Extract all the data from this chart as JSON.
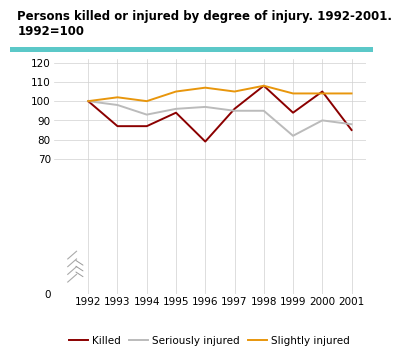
{
  "title_line1": "Persons killed or injured by degree of injury. 1992-2001.",
  "title_line2": "1992=100",
  "years": [
    1992,
    1993,
    1994,
    1995,
    1996,
    1997,
    1998,
    1999,
    2000,
    2001
  ],
  "killed": [
    100,
    87,
    87,
    94,
    79,
    96,
    108,
    94,
    105,
    85
  ],
  "seriously_injured": [
    100,
    98,
    93,
    96,
    97,
    95,
    95,
    82,
    90,
    88
  ],
  "slightly_injured": [
    100,
    102,
    100,
    105,
    107,
    105,
    108,
    104,
    104,
    104
  ],
  "killed_color": "#8B0000",
  "seriously_color": "#BBBBBB",
  "slightly_color": "#E8960C",
  "ylim": [
    0,
    122
  ],
  "yticks": [
    0,
    70,
    80,
    90,
    100,
    110,
    120
  ],
  "grid_color": "#D0D0D0",
  "bg_color": "#FFFFFF",
  "title_fontsize": 8.5,
  "tick_fontsize": 7.5,
  "legend_fontsize": 7.5,
  "line_width": 1.4,
  "header_color": "#5BC8C8",
  "legend_labels": [
    "Killed",
    "Seriously injured",
    "Slightly injured"
  ]
}
